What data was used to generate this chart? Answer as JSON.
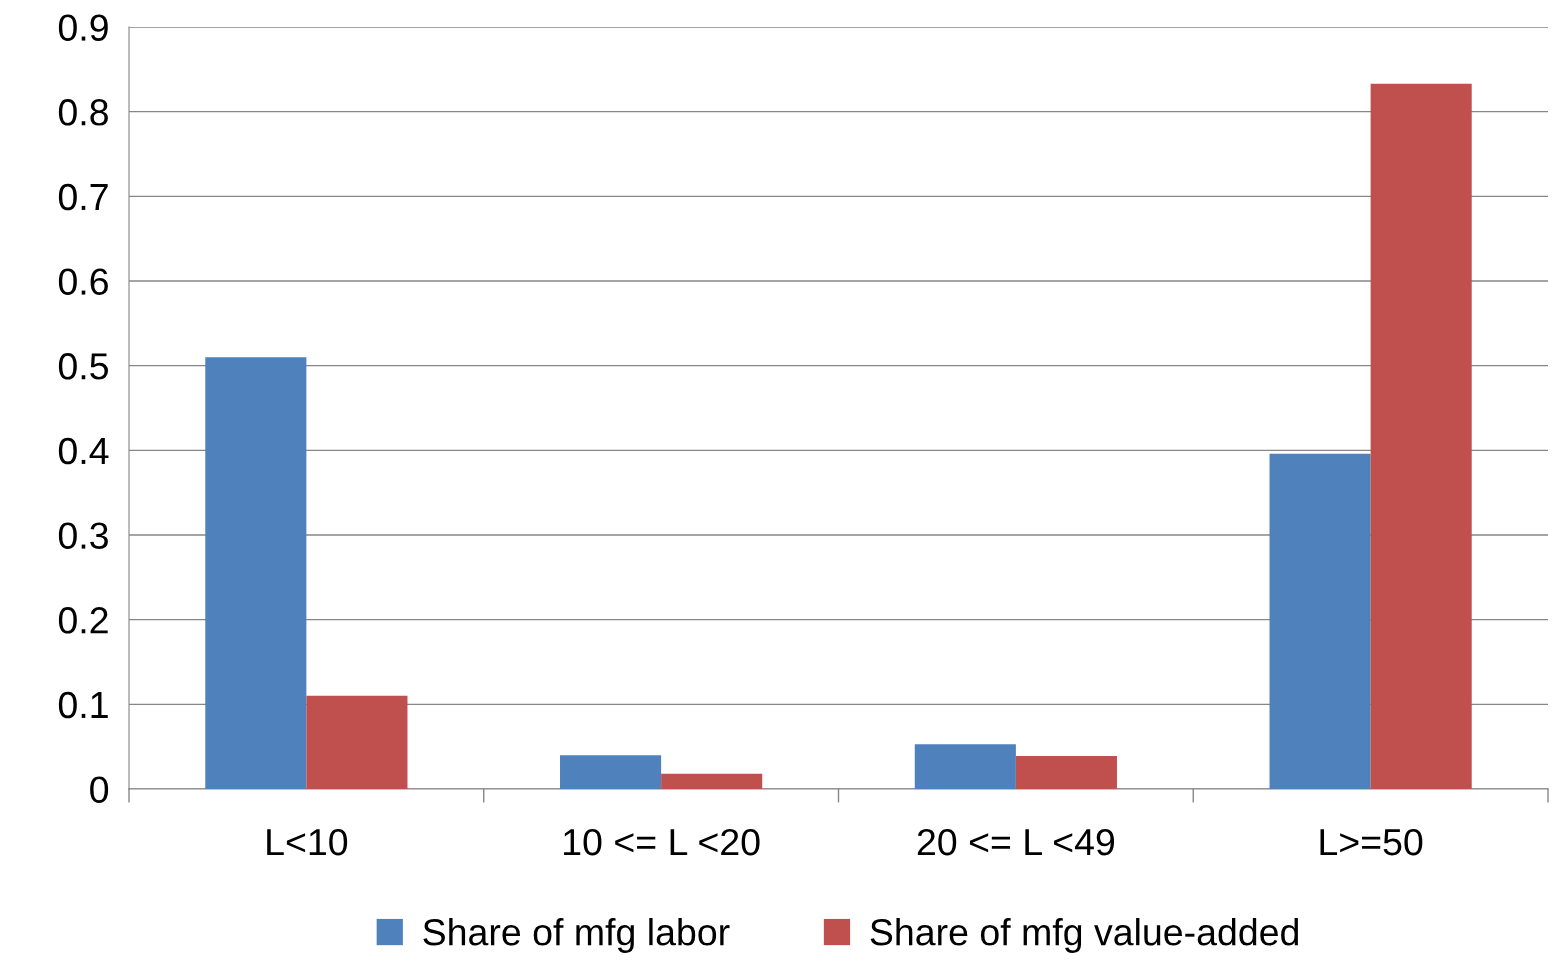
{
  "chart_data": {
    "type": "bar",
    "categories": [
      "L<10",
      "10 <= L <20",
      "20 <= L <49",
      "L>=50"
    ],
    "series": [
      {
        "name": "Share of mfg labor",
        "color": "#4f81bd",
        "values": [
          0.51,
          0.04,
          0.053,
          0.396
        ]
      },
      {
        "name": "Share of mfg value-added",
        "color": "#c0504d",
        "values": [
          0.11,
          0.018,
          0.039,
          0.833
        ]
      }
    ],
    "ylim": [
      0,
      0.9
    ],
    "yticks": [
      0,
      0.1,
      0.2,
      0.3,
      0.4,
      0.5,
      0.6,
      0.7,
      0.8,
      0.9
    ],
    "grid": "y",
    "legend": "bottom"
  }
}
